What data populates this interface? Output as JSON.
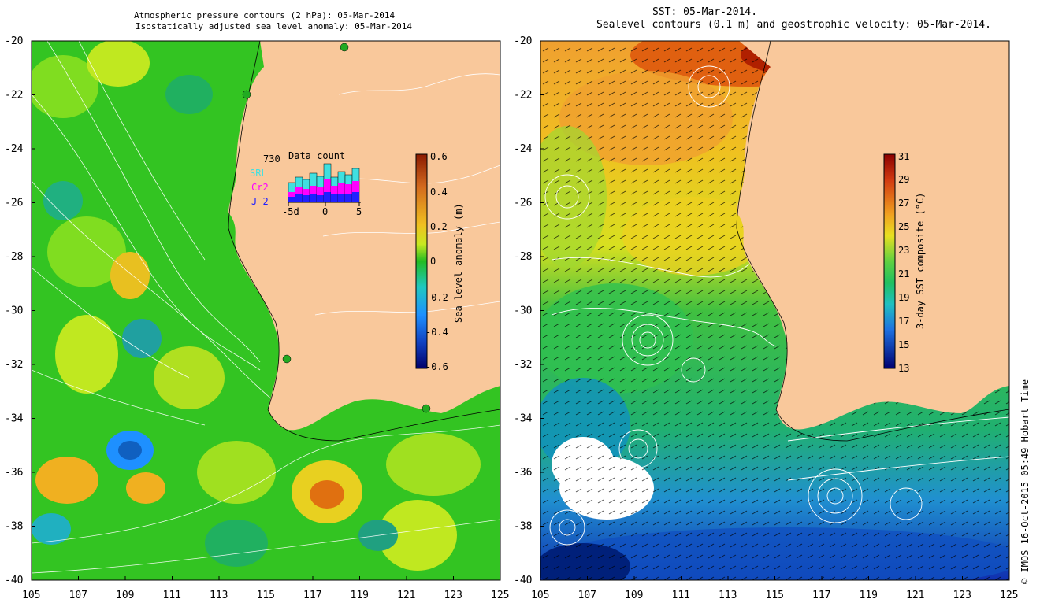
{
  "left_panel": {
    "title_line1": "Atmospheric pressure contours (2 hPa): 05-Mar-2014",
    "title_line2": "Isostatically adjusted sea level anomaly: 05-Mar-2014",
    "colorbar": {
      "label": "Sea level anomaly (m)",
      "ticks": [
        "0.6",
        "0.4",
        "0.2",
        "0",
        "-0.2",
        "-0.4",
        "-0.6"
      ]
    },
    "data_count": {
      "title": "Data count",
      "total": "730",
      "legend": [
        {
          "name": "SRL",
          "color": "#40e0e0"
        },
        {
          "name": "Cr2",
          "color": "#ff00ff"
        },
        {
          "name": "J-2",
          "color": "#2020ff"
        }
      ],
      "x_ticks": [
        "-5d",
        "0",
        "5"
      ]
    }
  },
  "right_panel": {
    "title_line1": "SST: 05-Mar-2014.",
    "title_line2": "Sealevel contours (0.1 m) and geostrophic velocity: 05-Mar-2014.",
    "colorbar": {
      "label": "3-day SST composite (°C)",
      "ticks": [
        "31",
        "29",
        "27",
        "25",
        "23",
        "21",
        "19",
        "17",
        "15",
        "13"
      ]
    }
  },
  "axes": {
    "y_ticks": [
      "-20",
      "-22",
      "-24",
      "-26",
      "-28",
      "-30",
      "-32",
      "-34",
      "-36",
      "-38",
      "-40"
    ],
    "x_ticks": [
      "105",
      "107",
      "109",
      "111",
      "113",
      "115",
      "117",
      "119",
      "121",
      "123",
      "125"
    ]
  },
  "credit": "© IMOS 16-Oct-2015 05:49 Hobart Time",
  "colors": {
    "land": "#f9c89b",
    "sea_green": "#33cc22",
    "sst_warm": "#cc3300"
  }
}
